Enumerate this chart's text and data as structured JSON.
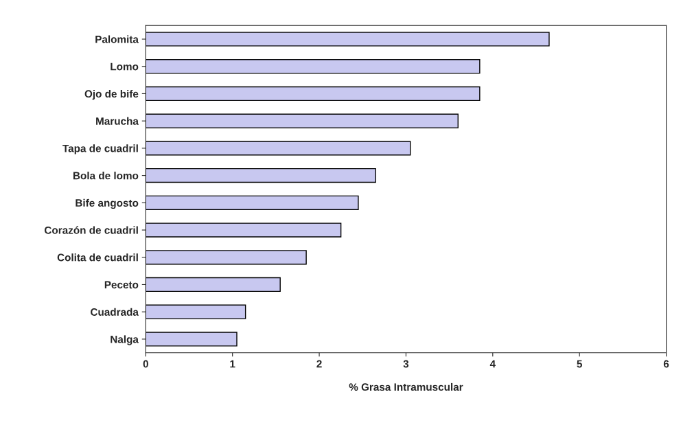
{
  "chart_data": {
    "type": "bar",
    "orientation": "horizontal",
    "xlabel": "% Grasa Intramuscular",
    "categories": [
      "Palomita",
      "Lomo",
      "Ojo de bife",
      "Marucha",
      "Tapa de cuadril",
      "Bola de lomo",
      "Bife angosto",
      "Corazón de cuadril",
      "Colita de cuadril",
      "Peceto",
      "Cuadrada",
      "Nalga"
    ],
    "values": [
      4.65,
      3.85,
      3.85,
      3.6,
      3.05,
      2.65,
      2.45,
      2.25,
      1.85,
      1.55,
      1.15,
      1.05
    ],
    "color": "#c8c8f0",
    "xlim": [
      0,
      6
    ],
    "xticks": [
      0,
      1,
      2,
      3,
      4,
      5,
      6
    ],
    "grid": false,
    "legend": false
  }
}
